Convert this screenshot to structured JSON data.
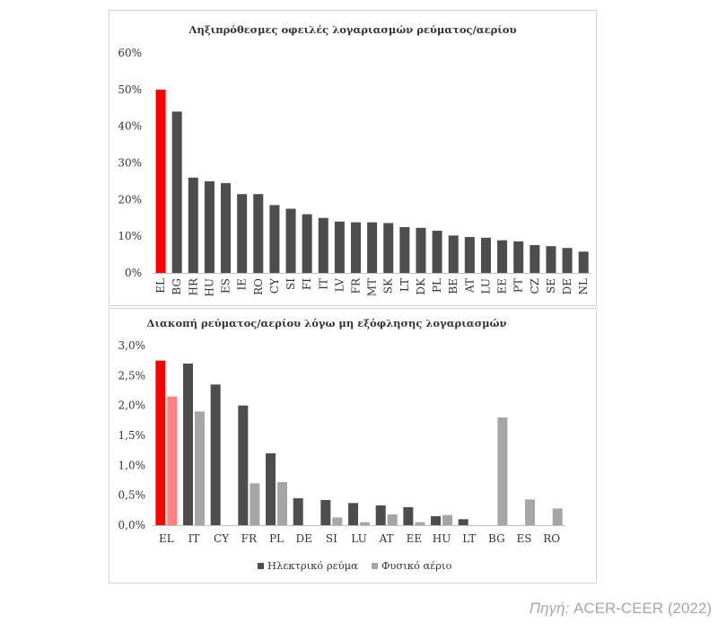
{
  "source": {
    "prefix": "Πηγή:",
    "text": "ACER-CEER (2022)"
  },
  "chart_data": [
    {
      "type": "bar",
      "title": "Ληξιπρόθεσμες οφειλές λογαριασμών ρεύματος/αερίου",
      "categories": [
        "EL",
        "BG",
        "HR",
        "HU",
        "ES",
        "IE",
        "RO",
        "CY",
        "SI",
        "FI",
        "IT",
        "LV",
        "FR",
        "MT",
        "SK",
        "LT",
        "DK",
        "PL",
        "BE",
        "AT",
        "LU",
        "EE",
        "PT",
        "CZ",
        "SE",
        "DE",
        "NL"
      ],
      "values": [
        50,
        44,
        26,
        25,
        24.5,
        21.5,
        21.5,
        18.5,
        17.5,
        16,
        15,
        14,
        13.8,
        13.8,
        13.6,
        12.5,
        12.3,
        11.5,
        10.2,
        9.8,
        9.6,
        8.9,
        8.6,
        7.6,
        7.3,
        6.8,
        5.8
      ],
      "ylim": [
        0,
        60
      ],
      "yticks": [
        "0%",
        "10%",
        "20%",
        "30%",
        "40%",
        "50%",
        "60%"
      ],
      "ytick_values": [
        0,
        10,
        20,
        30,
        40,
        50,
        60
      ],
      "colors": {
        "highlight": "#ff0000",
        "default": "#4d4d4d"
      },
      "highlight_category": "EL",
      "grid": false
    },
    {
      "type": "bar",
      "title": "Διακοπή ρεύματος/αερίου λόγω μη εξόφλησης λογαριασμών",
      "categories": [
        "EL",
        "IT",
        "CY",
        "FR",
        "PL",
        "DE",
        "SI",
        "LU",
        "AT",
        "EE",
        "HU",
        "LT",
        "BG",
        "ES",
        "RO"
      ],
      "series": [
        {
          "name": "Ηλεκτρικό ρεύμα",
          "values": [
            2.75,
            2.7,
            2.35,
            2.0,
            1.2,
            0.45,
            0.42,
            0.37,
            0.33,
            0.3,
            0.15,
            0.1,
            null,
            null,
            null
          ],
          "color": "#4d4d4d",
          "highlight_color": "#ff0000"
        },
        {
          "name": "Φυσικό αέριο",
          "values": [
            2.15,
            1.9,
            null,
            0.7,
            0.72,
            null,
            0.13,
            0.05,
            0.18,
            0.05,
            0.17,
            null,
            1.8,
            0.43,
            0.28
          ],
          "color": "#a6a6a6",
          "highlight_color": "#ff8080"
        }
      ],
      "ylim": [
        0,
        3.0
      ],
      "yticks": [
        "0,0%",
        "0,5%",
        "1,0%",
        "1,5%",
        "2,0%",
        "2,5%",
        "3,0%"
      ],
      "ytick_values": [
        0,
        0.5,
        1.0,
        1.5,
        2.0,
        2.5,
        3.0
      ],
      "highlight_category": "EL",
      "legend_position": "bottom",
      "grid": false
    }
  ]
}
